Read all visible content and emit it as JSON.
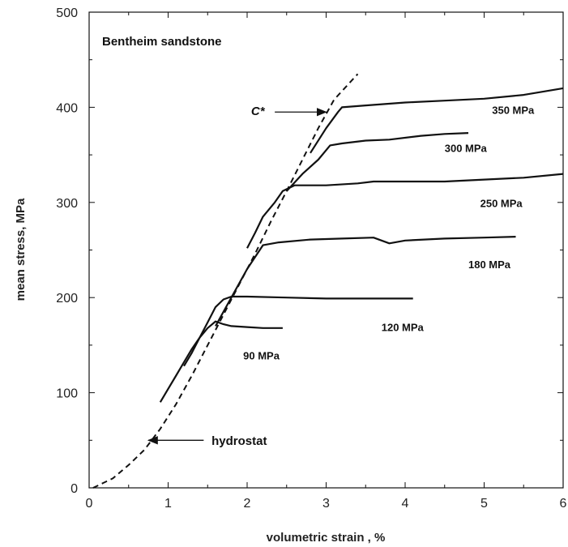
{
  "chart_data": {
    "type": "line",
    "title": "Bentheim sandstone",
    "xlabel": "volumetric strain , %",
    "ylabel": "mean stress, MPa",
    "xlim": [
      0,
      6
    ],
    "ylim": [
      0,
      500
    ],
    "xticks": [
      "0",
      "1",
      "2",
      "3",
      "4",
      "5",
      "6"
    ],
    "yticks": [
      "0",
      "100",
      "200",
      "300",
      "400",
      "500"
    ],
    "grid": false,
    "hydrostat": {
      "name": "hydrostat",
      "points": [
        [
          0.05,
          0
        ],
        [
          0.3,
          10
        ],
        [
          0.5,
          24
        ],
        [
          0.7,
          40
        ],
        [
          0.9,
          62
        ],
        [
          1.1,
          88
        ],
        [
          1.3,
          118
        ],
        [
          1.5,
          150
        ],
        [
          1.7,
          182
        ],
        [
          1.9,
          214
        ],
        [
          2.1,
          246
        ],
        [
          2.3,
          280
        ],
        [
          2.5,
          312
        ],
        [
          2.7,
          345
        ],
        [
          2.9,
          378
        ],
        [
          3.1,
          408
        ],
        [
          3.4,
          435
        ]
      ]
    },
    "series": [
      {
        "name": "90 MPa",
        "points": [
          [
            0.9,
            90
          ],
          [
            1.0,
            104
          ],
          [
            1.1,
            118
          ],
          [
            1.2,
            132
          ],
          [
            1.3,
            146
          ],
          [
            1.4,
            158
          ],
          [
            1.5,
            168
          ],
          [
            1.6,
            175
          ],
          [
            1.7,
            172
          ],
          [
            1.8,
            170
          ],
          [
            2.0,
            169
          ],
          [
            2.2,
            168
          ],
          [
            2.45,
            168
          ]
        ]
      },
      {
        "name": "120 MPa",
        "points": [
          [
            1.2,
            128
          ],
          [
            1.3,
            142
          ],
          [
            1.4,
            158
          ],
          [
            1.5,
            174
          ],
          [
            1.6,
            190
          ],
          [
            1.7,
            198
          ],
          [
            1.8,
            201
          ],
          [
            2.0,
            201
          ],
          [
            2.5,
            200
          ],
          [
            3.0,
            199
          ],
          [
            3.5,
            199
          ],
          [
            4.1,
            199
          ]
        ]
      },
      {
        "name": "180 MPa",
        "points": [
          [
            1.6,
            170
          ],
          [
            1.8,
            200
          ],
          [
            2.0,
            230
          ],
          [
            2.2,
            255
          ],
          [
            2.4,
            258
          ],
          [
            2.8,
            261
          ],
          [
            3.2,
            262
          ],
          [
            3.6,
            263
          ],
          [
            3.8,
            257
          ],
          [
            4.0,
            260
          ],
          [
            4.5,
            262
          ],
          [
            5.0,
            263
          ],
          [
            5.4,
            264
          ]
        ]
      },
      {
        "name": "250 MPa",
        "points": [
          [
            2.0,
            252
          ],
          [
            2.1,
            268
          ],
          [
            2.2,
            285
          ],
          [
            2.35,
            300
          ],
          [
            2.45,
            312
          ],
          [
            2.6,
            318
          ],
          [
            3.0,
            318
          ],
          [
            3.4,
            320
          ],
          [
            3.6,
            322
          ],
          [
            4.0,
            322
          ],
          [
            4.5,
            322
          ],
          [
            5.0,
            324
          ],
          [
            5.5,
            326
          ],
          [
            6.0,
            330
          ]
        ]
      },
      {
        "name": "300 MPa",
        "points": [
          [
            2.5,
            312
          ],
          [
            2.7,
            330
          ],
          [
            2.9,
            345
          ],
          [
            3.05,
            360
          ],
          [
            3.2,
            362
          ],
          [
            3.5,
            365
          ],
          [
            3.8,
            366
          ],
          [
            4.2,
            370
          ],
          [
            4.5,
            372
          ],
          [
            4.8,
            373
          ]
        ]
      },
      {
        "name": "350 MPa",
        "points": [
          [
            2.8,
            352
          ],
          [
            3.0,
            378
          ],
          [
            3.15,
            395
          ],
          [
            3.2,
            400
          ],
          [
            3.5,
            402
          ],
          [
            4.0,
            405
          ],
          [
            4.5,
            407
          ],
          [
            5.0,
            409
          ],
          [
            5.5,
            413
          ],
          [
            6.0,
            420
          ]
        ]
      }
    ],
    "series_labels": [
      {
        "name": "350 MPa",
        "x": 5.1,
        "y": 393
      },
      {
        "name": "300 MPa",
        "x": 4.5,
        "y": 353
      },
      {
        "name": "250 MPa",
        "x": 4.95,
        "y": 295
      },
      {
        "name": "180 MPa",
        "x": 4.8,
        "y": 231
      },
      {
        "name": "120 MPa",
        "x": 3.7,
        "y": 165
      },
      {
        "name": "90 MPa",
        "x": 1.95,
        "y": 135
      }
    ],
    "annotations": [
      {
        "label": "C*",
        "text_x": 2.05,
        "text_y": 392,
        "arrow_from": [
          2.35,
          395
        ],
        "arrow_to": [
          3.0,
          395
        ]
      },
      {
        "label": "hydrostat",
        "text_x": 1.55,
        "text_y": 45,
        "arrow_from": [
          1.45,
          50
        ],
        "arrow_to": [
          0.75,
          50
        ]
      }
    ]
  }
}
